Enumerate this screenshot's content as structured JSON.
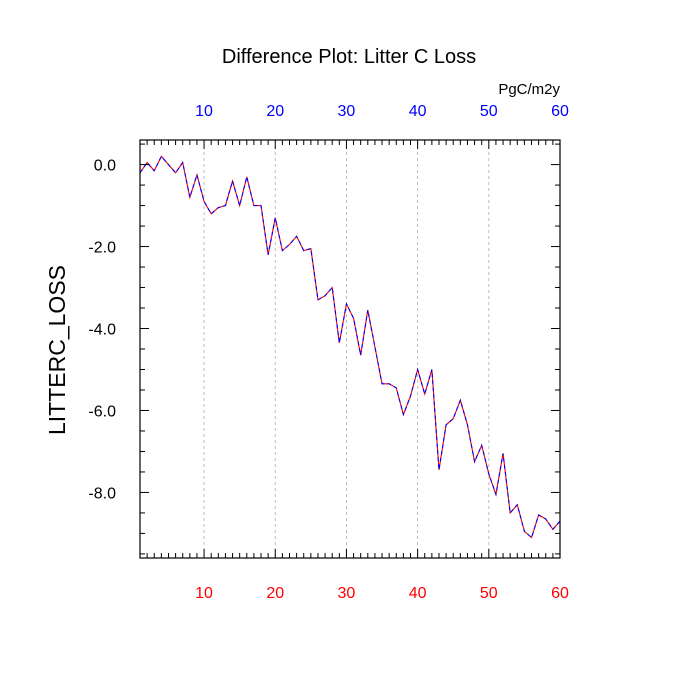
{
  "chart_data": {
    "type": "line",
    "title": "Difference Plot: Litter C Loss",
    "units": "PgC/m2y",
    "xlabel": "",
    "ylabel": "LITTERC_LOSS",
    "xlim": [
      1,
      60
    ],
    "ylim": [
      -9.6,
      0.6
    ],
    "x_ticks": [
      10,
      20,
      30,
      40,
      50,
      60
    ],
    "x_tick_labels": [
      "10",
      "20",
      "30",
      "40",
      "50",
      "60"
    ],
    "y_ticks": [
      0,
      -2,
      -4,
      -6,
      -8
    ],
    "y_tick_labels": [
      "0.0",
      "-2.0",
      "-4.0",
      "-6.0",
      "-8.0"
    ],
    "grid": "vertical dashed at major x ticks",
    "colors": {
      "bottom_tick_labels": "#ff0000",
      "top_tick_labels": "#0000ff",
      "series_a": "#ff0000",
      "series_b": "#0000ff"
    },
    "series": [
      {
        "values": [
          -0.2,
          0.05,
          -0.15,
          0.2,
          0.0,
          -0.2,
          0.05,
          -0.8,
          -0.25,
          -0.9,
          -1.2,
          -1.05,
          -1.0,
          -0.4,
          -1.0,
          -0.3,
          -1.0,
          -1.0,
          -2.2,
          -1.3,
          -2.1,
          -1.95,
          -1.75,
          -2.1,
          -2.05,
          -3.3,
          -3.2,
          -3.0,
          -4.35,
          -3.4,
          -3.75,
          -4.65,
          -3.55,
          -4.45,
          -5.35,
          -5.35,
          -5.45,
          -6.1,
          -5.65,
          -5.0,
          -5.6,
          -5.0,
          -7.45,
          -6.35,
          -6.2,
          -5.75,
          -6.35,
          -7.25,
          -6.85,
          -7.55,
          -8.05,
          -7.05,
          -8.5,
          -8.3,
          -8.95,
          -9.1,
          -8.55,
          -8.65,
          -8.9,
          -8.7
        ]
      },
      {
        "values": [
          -0.2,
          0.05,
          -0.15,
          0.2,
          0.0,
          -0.2,
          0.05,
          -0.8,
          -0.25,
          -0.9,
          -1.2,
          -1.05,
          -1.0,
          -0.4,
          -1.0,
          -0.3,
          -1.0,
          -1.0,
          -2.2,
          -1.3,
          -2.1,
          -1.95,
          -1.75,
          -2.1,
          -2.05,
          -3.3,
          -3.2,
          -3.0,
          -4.35,
          -3.4,
          -3.75,
          -4.65,
          -3.55,
          -4.45,
          -5.35,
          -5.35,
          -5.45,
          -6.1,
          -5.65,
          -5.0,
          -5.6,
          -5.0,
          -7.45,
          -6.35,
          -6.2,
          -5.75,
          -6.35,
          -7.25,
          -6.85,
          -7.55,
          -8.05,
          -7.05,
          -8.5,
          -8.3,
          -8.95,
          -9.1,
          -8.55,
          -8.65,
          -8.9,
          -8.7
        ]
      }
    ]
  }
}
